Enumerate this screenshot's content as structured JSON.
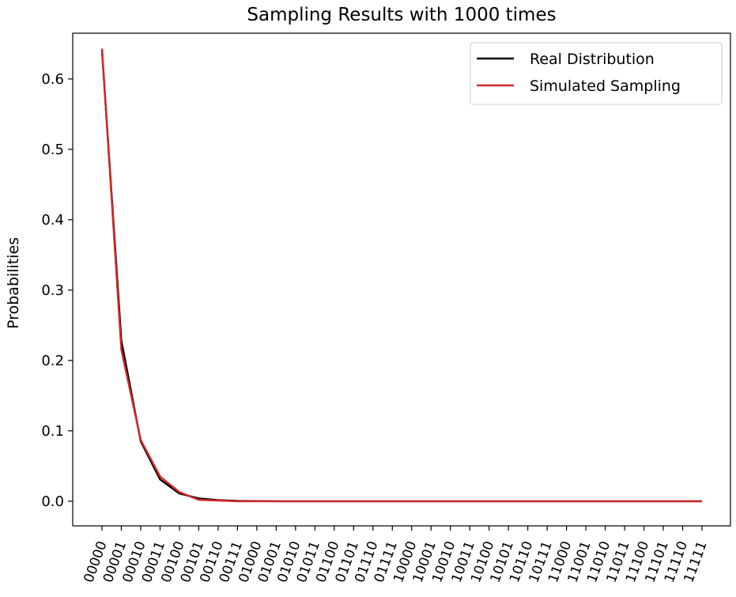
{
  "chart_data": {
    "type": "line",
    "title": "Sampling Results with 1000 times",
    "xlabel": "",
    "ylabel": "Probabilities",
    "ylim": [
      -0.035,
      0.665
    ],
    "yticks": [
      "0.0",
      "0.1",
      "0.2",
      "0.3",
      "0.4",
      "0.5",
      "0.6"
    ],
    "legend_position": "top-right",
    "grid": false,
    "categories": [
      "00000",
      "00001",
      "00010",
      "00011",
      "00100",
      "00101",
      "00110",
      "00111",
      "01000",
      "01001",
      "01010",
      "01011",
      "01100",
      "01101",
      "01110",
      "01111",
      "10000",
      "10001",
      "10010",
      "10011",
      "10100",
      "10101",
      "10110",
      "10111",
      "11000",
      "11001",
      "11010",
      "11011",
      "11100",
      "11101",
      "11110",
      "11111"
    ],
    "series": [
      {
        "name": "Real Distribution",
        "color": "#000000",
        "values": [
          0.641,
          0.228,
          0.085,
          0.031,
          0.011,
          0.004,
          0.0015,
          0.0005,
          0.0002,
          0,
          0,
          0,
          0,
          0,
          0,
          0,
          0,
          0,
          0,
          0,
          0,
          0,
          0,
          0,
          0,
          0,
          0,
          0,
          0,
          0,
          0,
          0
        ]
      },
      {
        "name": "Simulated Sampling",
        "color": "#d62728",
        "values": [
          0.643,
          0.215,
          0.087,
          0.035,
          0.013,
          0.002,
          0.001,
          0,
          0,
          0,
          0,
          0,
          0,
          0,
          0,
          0,
          0,
          0,
          0,
          0,
          0,
          0,
          0,
          0,
          0,
          0,
          0,
          0,
          0,
          0,
          0,
          0
        ]
      }
    ]
  }
}
